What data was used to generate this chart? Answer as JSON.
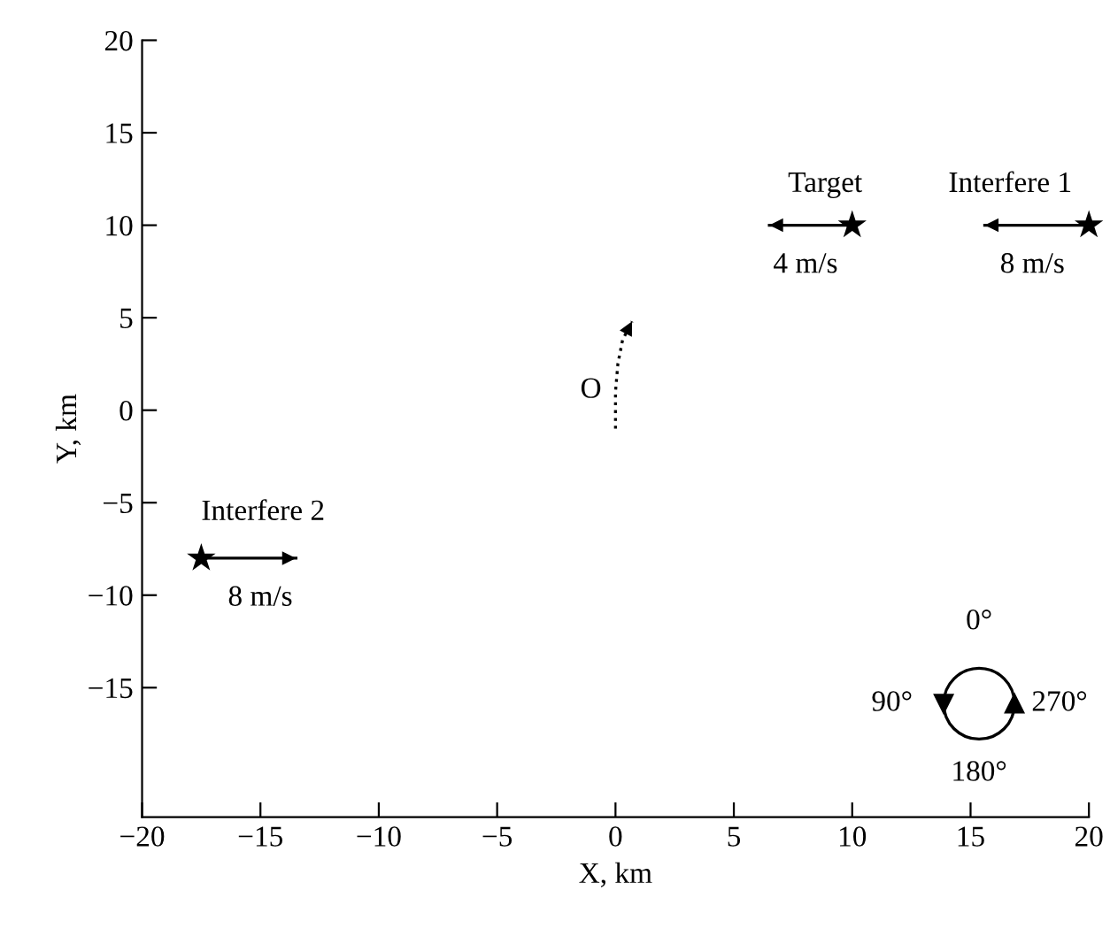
{
  "chart_data": {
    "type": "scatter",
    "xlabel": "X, km",
    "ylabel": "Y, km",
    "xlim": [
      -20,
      20
    ],
    "ylim": [
      -22,
      20
    ],
    "xticks": [
      -20,
      -15,
      -10,
      -5,
      0,
      5,
      10,
      15,
      20
    ],
    "yticks": [
      -15,
      -10,
      -5,
      0,
      5,
      10,
      15,
      20
    ],
    "grid": false,
    "series": [
      {
        "marker": "star",
        "color": "#000000",
        "x": [
          10,
          20,
          -17.5
        ],
        "values": [
          10,
          10,
          -8
        ]
      },
      {
        "type": "line",
        "line_style": "dotted",
        "color": "#000000",
        "x": [
          0,
          0,
          0.1,
          0.3,
          0.7
        ],
        "values": [
          -1,
          1,
          2.5,
          3.8,
          4.8
        ]
      },
      {
        "type": "line",
        "line_style": "solid",
        "color": "#000000",
        "x": [
          10,
          6.5
        ],
        "values": [
          10,
          10
        ]
      },
      {
        "type": "line",
        "line_style": "solid",
        "color": "#000000",
        "x": [
          20,
          15.6
        ],
        "values": [
          10,
          10
        ]
      },
      {
        "type": "line",
        "line_style": "solid",
        "color": "#000000",
        "x": [
          -17.5,
          -13.5
        ],
        "values": [
          -8,
          -8
        ]
      }
    ],
    "annotations": [
      {
        "text": "Target",
        "x": 10,
        "y": 10
      },
      {
        "text": "Interfere 1",
        "x": 20,
        "y": 10
      },
      {
        "text": "Interfere 2",
        "x": -17.5,
        "y": -8
      },
      {
        "text": "4 m/s",
        "x": 10,
        "y": 10
      },
      {
        "text": "8 m/s",
        "x": 20,
        "y": 10
      },
      {
        "text": "8 m/s",
        "x": -17.5,
        "y": -8
      },
      {
        "text": "O",
        "x": 0,
        "y": 0
      },
      "0°",
      "90°",
      "180°",
      "270°"
    ]
  }
}
